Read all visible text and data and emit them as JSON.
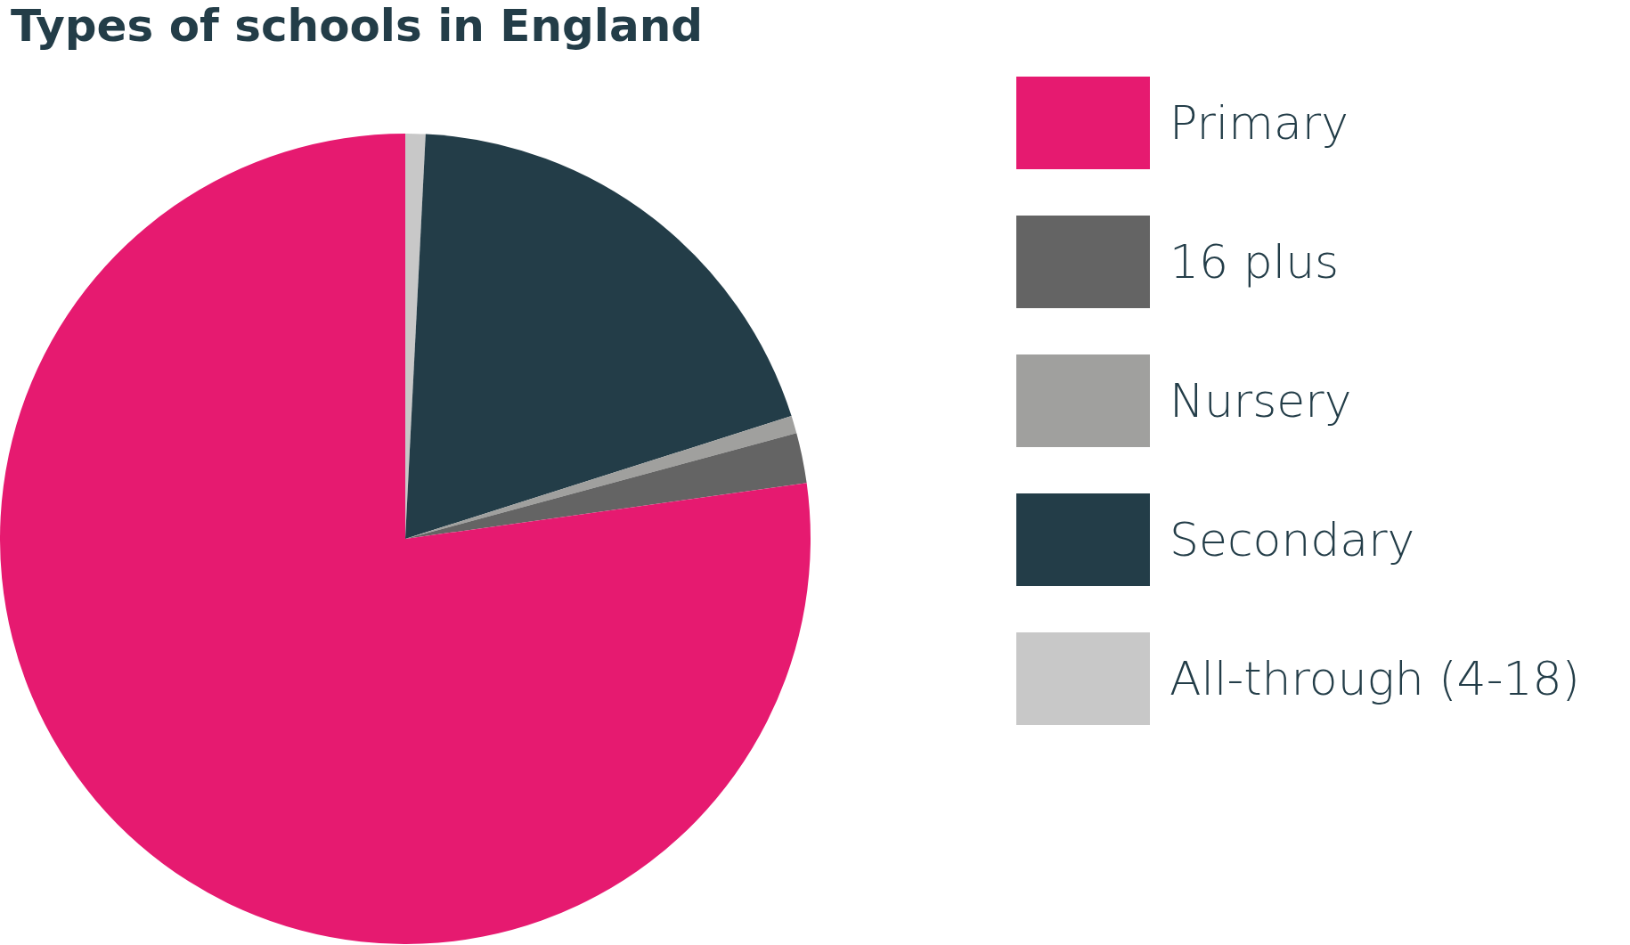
{
  "chart_data": {
    "type": "pie",
    "title": "Types of schools in England",
    "categories": [
      "Primary",
      "16 plus",
      "Nursery",
      "Secondary",
      "All-through (4-18)"
    ],
    "values": [
      77.2,
      2.0,
      0.7,
      19.3,
      0.8
    ],
    "colors": [
      "#e61a70",
      "#646464",
      "#a0a09e",
      "#233d48",
      "#c8c8c8"
    ],
    "legend": "right"
  }
}
